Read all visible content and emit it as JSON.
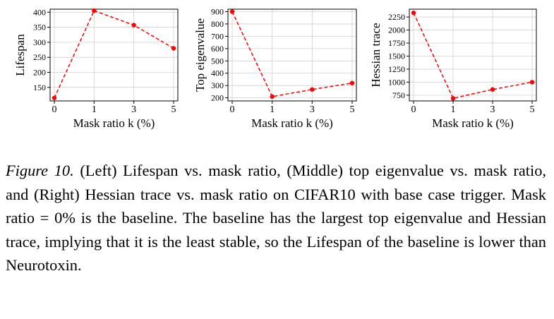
{
  "chart_data": [
    {
      "type": "line",
      "title": "",
      "xlabel": "Mask ratio k (%)",
      "ylabel": "Lifespan",
      "x": [
        0,
        1,
        3,
        5
      ],
      "x_ticks": [
        "0",
        "1",
        "3",
        "5"
      ],
      "x_categorical": true,
      "y_ticks": [
        "150",
        "200",
        "250",
        "300",
        "350",
        "400"
      ],
      "y_tick_values": [
        150,
        200,
        250,
        300,
        350,
        400
      ],
      "ylim": [
        105,
        410
      ],
      "grid": true,
      "color": "#ff0000",
      "series": [
        {
          "values": [
            115,
            405,
            357,
            280
          ]
        }
      ]
    },
    {
      "type": "line",
      "title": "",
      "xlabel": "Mask ratio k (%)",
      "ylabel": "Top eigenvalue",
      "x": [
        0,
        1,
        3,
        5
      ],
      "x_ticks": [
        "0",
        "1",
        "3",
        "5"
      ],
      "x_categorical": true,
      "y_ticks": [
        "200",
        "300",
        "400",
        "500",
        "600",
        "700",
        "800",
        "900"
      ],
      "y_tick_values": [
        200,
        300,
        400,
        500,
        600,
        700,
        800,
        900
      ],
      "ylim": [
        175,
        920
      ],
      "grid": true,
      "color": "#ff0000",
      "series": [
        {
          "values": [
            900,
            210,
            268,
            320
          ]
        }
      ]
    },
    {
      "type": "line",
      "title": "",
      "xlabel": "Mask ratio k (%)",
      "ylabel": "Hessian trace",
      "x": [
        0,
        1,
        3,
        5
      ],
      "x_ticks": [
        "0",
        "1",
        "3",
        "5"
      ],
      "x_categorical": true,
      "y_ticks": [
        "750",
        "1000",
        "1250",
        "1500",
        "1750",
        "2000",
        "2250"
      ],
      "y_tick_values": [
        750,
        1000,
        1250,
        1500,
        1750,
        2000,
        2250
      ],
      "ylim": [
        640,
        2400
      ],
      "grid": true,
      "color": "#ff0000",
      "series": [
        {
          "values": [
            2330,
            690,
            860,
            1000
          ]
        }
      ]
    }
  ],
  "caption": {
    "label": "Figure 10.",
    "text": " (Left) Lifespan vs. mask ratio, (Middle) top eigenvalue vs. mask ratio, and (Right) Hessian trace vs. mask ratio on CIFAR10 with base case trigger. Mask ratio = 0% is the baseline. The baseline has the largest top eigenvalue and Hessian trace, implying that it is the least stable, so the Lifespan of the baseline is lower than Neurotoxin."
  }
}
